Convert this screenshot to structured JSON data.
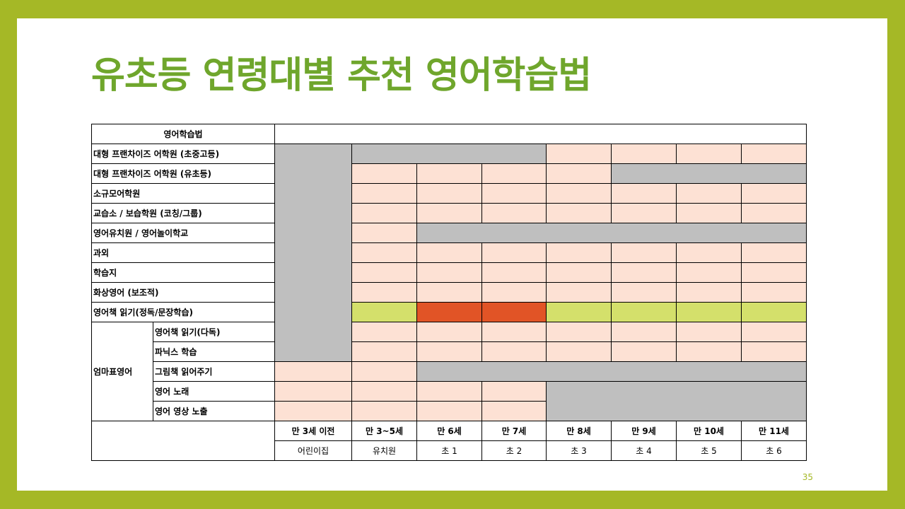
{
  "title": "유초등 연령대별 추천 영어학습법",
  "header_label": "영어학습법",
  "rows": {
    "r1": "대형 프랜차이즈 어학원 (초중고등)",
    "r2": "대형 프랜차이즈 어학원 (유초등)",
    "r3": "소규모어학원",
    "r4": "교습소 / 보습학원   (코칭/그룹)",
    "r5": "영어유치원 / 영어놀이학교",
    "r6": "과외",
    "r7": "학습지",
    "r8": "화상영어 (보조적)",
    "r9": "영어책 읽기(정독/문장학습)",
    "mom_group": "엄마표영어",
    "m1": "영어책 읽기(다독)",
    "m2": "파닉스 학습",
    "m3": "그림책 읽어주기",
    "m4": "영어 노래",
    "m5": "영어 영상 노출"
  },
  "ages": [
    "만 3세 이전",
    "만 3~5세",
    "만 6세",
    "만 7세",
    "만 8세",
    "만 9세",
    "만 10세",
    "만 11세"
  ],
  "grades": [
    "어린이집",
    "유치원",
    "초 1",
    "초 2",
    "초 3",
    "초 4",
    "초 5",
    "초 6"
  ],
  "page_number": "35",
  "colors": {
    "background": "#a5b826",
    "title": "#6fa62c",
    "recommended": "#fde1d4",
    "not_applicable": "#bfbfbf",
    "highlight": "#d4e06b",
    "strong_highlight": "#e15426"
  }
}
